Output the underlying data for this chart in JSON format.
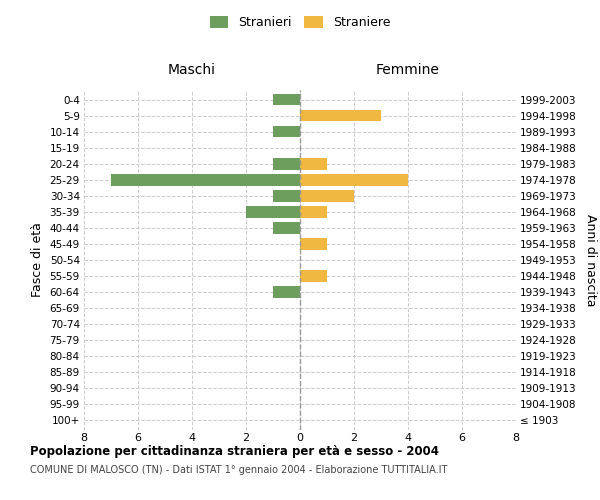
{
  "age_groups": [
    "100+",
    "95-99",
    "90-94",
    "85-89",
    "80-84",
    "75-79",
    "70-74",
    "65-69",
    "60-64",
    "55-59",
    "50-54",
    "45-49",
    "40-44",
    "35-39",
    "30-34",
    "25-29",
    "20-24",
    "15-19",
    "10-14",
    "5-9",
    "0-4"
  ],
  "birth_years": [
    "≤ 1903",
    "1904-1908",
    "1909-1913",
    "1914-1918",
    "1919-1923",
    "1924-1928",
    "1929-1933",
    "1934-1938",
    "1939-1943",
    "1944-1948",
    "1949-1953",
    "1954-1958",
    "1959-1963",
    "1964-1968",
    "1969-1973",
    "1974-1978",
    "1979-1983",
    "1984-1988",
    "1989-1993",
    "1994-1998",
    "1999-2003"
  ],
  "maschi": [
    0,
    0,
    0,
    0,
    0,
    0,
    0,
    0,
    1,
    0,
    0,
    0,
    1,
    2,
    1,
    7,
    1,
    0,
    1,
    0,
    1
  ],
  "femmine": [
    0,
    0,
    0,
    0,
    0,
    0,
    0,
    0,
    0,
    1,
    0,
    1,
    0,
    1,
    2,
    4,
    1,
    0,
    0,
    3,
    0
  ],
  "color_maschi": "#6e9e5e",
  "color_femmine": "#f0b840",
  "xlim": 8,
  "title": "Popolazione per cittadinanza straniera per età e sesso - 2004",
  "subtitle": "COMUNE DI MALOSCO (TN) - Dati ISTAT 1° gennaio 2004 - Elaborazione TUTTITALIA.IT",
  "legend_maschi": "Stranieri",
  "legend_femmine": "Straniere",
  "ylabel_left": "Fasce di età",
  "ylabel_right": "Anni di nascita",
  "label_maschi": "Maschi",
  "label_femmine": "Femmine",
  "bg_color": "#ffffff",
  "grid_color": "#cccccc"
}
